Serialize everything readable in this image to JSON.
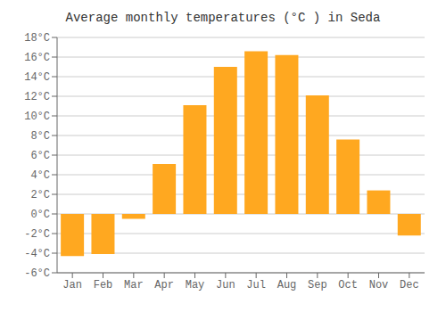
{
  "chart_data": {
    "type": "bar",
    "title": "Average monthly temperatures (°C ) in Seda",
    "categories": [
      "Jan",
      "Feb",
      "Mar",
      "Apr",
      "May",
      "Jun",
      "Jul",
      "Aug",
      "Sep",
      "Oct",
      "Nov",
      "Dec"
    ],
    "values": [
      -4.3,
      -4.1,
      -0.5,
      5.1,
      11.1,
      15.0,
      16.6,
      16.2,
      12.1,
      7.6,
      2.4,
      -2.2
    ],
    "color": "#FFA820",
    "ylim": [
      -6,
      18
    ],
    "yticks": [
      {
        "value": -6,
        "label": "-6°C"
      },
      {
        "value": -4,
        "label": "-4°C"
      },
      {
        "value": -2,
        "label": "-2°C"
      },
      {
        "value": 0,
        "label": "0°C"
      },
      {
        "value": 2,
        "label": "2°C"
      },
      {
        "value": 4,
        "label": "4°C"
      },
      {
        "value": 6,
        "label": "6°C"
      },
      {
        "value": 8,
        "label": "8°C"
      },
      {
        "value": 10,
        "label": "10°C"
      },
      {
        "value": 12,
        "label": "12°C"
      },
      {
        "value": 14,
        "label": "14°C"
      },
      {
        "value": 16,
        "label": "16°C"
      },
      {
        "value": 18,
        "label": "18°C"
      }
    ],
    "grid": true
  }
}
